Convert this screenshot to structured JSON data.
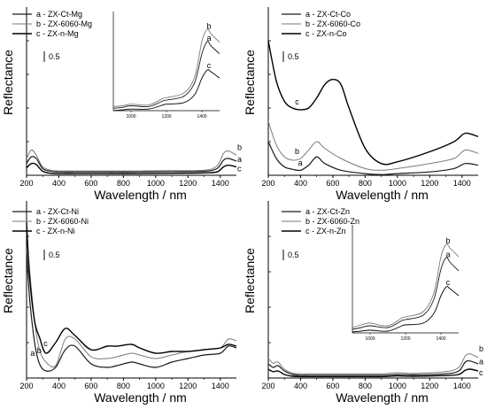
{
  "figure": {
    "panels": [
      {
        "id": "mg",
        "legend": [
          "a - ZX-Ct-Mg",
          "b - ZX-6060-Mg",
          "c - ZX-n-Mg"
        ],
        "scale_label": "0.5"
      },
      {
        "id": "co",
        "legend": [
          "a - ZX-Ct-Co",
          "b - ZX-6060-Co",
          "c - ZX-n-Co"
        ],
        "scale_label": "0.5"
      },
      {
        "id": "ni",
        "legend": [
          "a - ZX-Ct-Ni",
          "b - ZX-6060-Ni",
          "c - ZX-n-Ni"
        ],
        "scale_label": "0.5"
      },
      {
        "id": "zn",
        "legend": [
          "a - ZX-Ct-Zn",
          "b - ZX-6060-Zn",
          "c - ZX-n-Zn"
        ],
        "scale_label": "0.5"
      }
    ]
  },
  "chart_data": [
    {
      "type": "line",
      "xlabel": "Wavelength / nm",
      "ylabel": "Reflectance",
      "xlim": [
        200,
        1500
      ],
      "ylim": [
        0,
        5
      ],
      "x_ticks": [
        "200",
        "400",
        "600",
        "800",
        "1000",
        "1200",
        "1400"
      ],
      "legend": [
        "a - ZX-Ct-Mg",
        "b - ZX-6060-Mg",
        "c - ZX-n-Mg"
      ],
      "annotations": [
        "a",
        "b",
        "c",
        "0.5"
      ],
      "series": [
        {
          "name": "a - ZX-Ct-Mg",
          "label": "a",
          "x": [
            200,
            230,
            260,
            300,
            350,
            400,
            500,
            700,
            900,
            1100,
            1300,
            1380,
            1420,
            1450,
            1500
          ],
          "y": [
            0.35,
            0.55,
            0.5,
            0.2,
            0.12,
            0.1,
            0.1,
            0.1,
            0.1,
            0.11,
            0.12,
            0.2,
            0.45,
            0.5,
            0.42
          ]
        },
        {
          "name": "b - ZX-6060-Mg",
          "label": "b",
          "x": [
            200,
            230,
            260,
            300,
            350,
            400,
            500,
            700,
            900,
            1100,
            1300,
            1380,
            1420,
            1450,
            1500
          ],
          "y": [
            0.5,
            0.75,
            0.6,
            0.25,
            0.15,
            0.13,
            0.13,
            0.13,
            0.13,
            0.14,
            0.15,
            0.28,
            0.65,
            0.72,
            0.6
          ]
        },
        {
          "name": "c - ZX-n-Mg",
          "label": "c",
          "x": [
            200,
            230,
            260,
            300,
            350,
            400,
            500,
            700,
            900,
            1100,
            1300,
            1380,
            1420,
            1450,
            1500
          ],
          "y": [
            0.22,
            0.35,
            0.32,
            0.12,
            0.06,
            0.05,
            0.05,
            0.05,
            0.05,
            0.06,
            0.07,
            0.1,
            0.25,
            0.3,
            0.25
          ]
        }
      ],
      "inset": {
        "x_ticks": [
          "1000",
          "1200",
          "1400"
        ],
        "xlim": [
          900,
          1500
        ],
        "ylim": [
          0,
          1
        ],
        "series": [
          {
            "label": "a",
            "x": [
              900,
              950,
              1000,
              1100,
              1180,
              1200,
              1300,
              1360,
              1400,
              1430,
              1450,
              1500
            ],
            "y": [
              0.03,
              0.04,
              0.06,
              0.05,
              0.12,
              0.13,
              0.18,
              0.35,
              0.7,
              0.85,
              0.8,
              0.7
            ]
          },
          {
            "label": "b",
            "x": [
              900,
              950,
              1000,
              1100,
              1180,
              1200,
              1300,
              1360,
              1400,
              1430,
              1450,
              1500
            ],
            "y": [
              0.05,
              0.06,
              0.08,
              0.07,
              0.15,
              0.16,
              0.22,
              0.42,
              0.85,
              1.0,
              0.95,
              0.84
            ]
          },
          {
            "label": "c",
            "x": [
              900,
              950,
              1000,
              1100,
              1180,
              1200,
              1300,
              1360,
              1400,
              1430,
              1450,
              1500
            ],
            "y": [
              0.0,
              0.01,
              0.02,
              0.02,
              0.07,
              0.08,
              0.1,
              0.2,
              0.4,
              0.5,
              0.48,
              0.4
            ]
          }
        ]
      }
    },
    {
      "type": "line",
      "xlabel": "Wavelength / nm",
      "ylabel": "Reflectance",
      "xlim": [
        200,
        1500
      ],
      "ylim": [
        0,
        5
      ],
      "x_ticks": [
        "200",
        "400",
        "600",
        "800",
        "1000",
        "1200",
        "1400"
      ],
      "legend": [
        "a - ZX-Ct-Co",
        "b - ZX-6060-Co",
        "c - ZX-n-Co"
      ],
      "annotations": [
        "a",
        "b",
        "c",
        "0.5"
      ],
      "series": [
        {
          "name": "a - ZX-Ct-Co",
          "label": "a",
          "x": [
            200,
            250,
            300,
            350,
            400,
            450,
            500,
            550,
            650,
            800,
            900,
            1000,
            1200,
            1350,
            1420,
            1500
          ],
          "y": [
            1.0,
            0.5,
            0.25,
            0.18,
            0.15,
            0.3,
            0.55,
            0.35,
            0.15,
            0.05,
            0.02,
            0.05,
            0.1,
            0.2,
            0.35,
            0.3
          ]
        },
        {
          "name": "b - ZX-6060-Co",
          "label": "b",
          "x": [
            200,
            250,
            300,
            350,
            400,
            450,
            500,
            550,
            650,
            800,
            900,
            1000,
            1200,
            1350,
            1420,
            1500
          ],
          "y": [
            1.6,
            0.9,
            0.55,
            0.45,
            0.5,
            0.75,
            1.0,
            0.8,
            0.5,
            0.2,
            0.15,
            0.2,
            0.35,
            0.5,
            0.75,
            0.65
          ]
        },
        {
          "name": "c - ZX-n-Co",
          "label": "c",
          "x": [
            200,
            250,
            300,
            350,
            400,
            450,
            500,
            550,
            600,
            650,
            700,
            800,
            900,
            1000,
            1200,
            1350,
            1420,
            1500
          ],
          "y": [
            4.0,
            2.8,
            2.2,
            2.0,
            1.95,
            2.0,
            2.3,
            2.7,
            2.85,
            2.7,
            2.0,
            0.8,
            0.35,
            0.4,
            0.7,
            1.0,
            1.25,
            1.15
          ]
        }
      ]
    },
    {
      "type": "line",
      "xlabel": "Wavelength / nm",
      "ylabel": "Reflectance",
      "xlim": [
        200,
        1500
      ],
      "ylim": [
        0,
        5
      ],
      "x_ticks": [
        "200",
        "400",
        "600",
        "800",
        "1000",
        "1200",
        "1400"
      ],
      "legend": [
        "a - ZX-Ct-Ni",
        "b - ZX-6060-Ni",
        "c - ZX-n-Ni"
      ],
      "annotations": [
        "a",
        "b",
        "c",
        "0.5"
      ],
      "series": [
        {
          "name": "a - ZX-Ct-Ni",
          "label": "a",
          "x": [
            200,
            220,
            250,
            280,
            320,
            380,
            440,
            500,
            600,
            700,
            760,
            850,
            900,
            1000,
            1100,
            1200,
            1300,
            1400,
            1450,
            1500
          ],
          "y": [
            3.6,
            2.2,
            1.0,
            0.4,
            0.2,
            0.3,
            0.8,
            0.9,
            0.4,
            0.3,
            0.35,
            0.45,
            0.4,
            0.3,
            0.45,
            0.55,
            0.65,
            0.7,
            0.9,
            0.85
          ]
        },
        {
          "name": "b - ZX-6060-Ni",
          "label": "b",
          "x": [
            200,
            220,
            250,
            280,
            320,
            380,
            440,
            500,
            600,
            700,
            760,
            850,
            900,
            1000,
            1100,
            1200,
            1300,
            1400,
            1450,
            1500
          ],
          "y": [
            4.2,
            3.0,
            1.6,
            0.8,
            0.45,
            0.35,
            1.1,
            1.1,
            0.6,
            0.55,
            0.6,
            0.7,
            0.65,
            0.55,
            0.65,
            0.75,
            0.8,
            0.85,
            1.1,
            1.05
          ]
        },
        {
          "name": "c - ZX-n-Ni",
          "label": "c",
          "x": [
            200,
            220,
            250,
            280,
            320,
            380,
            440,
            500,
            600,
            700,
            760,
            850,
            900,
            1000,
            1100,
            1200,
            1300,
            1400,
            1450,
            1500
          ],
          "y": [
            4.4,
            2.8,
            1.6,
            1.15,
            0.7,
            1.0,
            1.4,
            1.2,
            0.8,
            0.9,
            0.9,
            0.95,
            0.85,
            0.7,
            0.75,
            0.75,
            0.8,
            0.85,
            0.95,
            0.9
          ]
        }
      ]
    },
    {
      "type": "line",
      "xlabel": "Wavelength / nm",
      "ylabel": "Reflectance",
      "xlim": [
        200,
        1500
      ],
      "ylim": [
        0,
        5
      ],
      "x_ticks": [
        "200",
        "400",
        "600",
        "800",
        "1000",
        "1200",
        "1400"
      ],
      "legend": [
        "a - ZX-Ct-Zn",
        "b - ZX-6060-Zn",
        "c - ZX-n-Zn"
      ],
      "annotations": [
        "a",
        "b",
        "c",
        "0.5"
      ],
      "series": [
        {
          "name": "a - ZX-Ct-Zn",
          "label": "a",
          "x": [
            200,
            230,
            260,
            300,
            350,
            400,
            500,
            700,
            900,
            1000,
            1100,
            1300,
            1380,
            1420,
            1450,
            1500
          ],
          "y": [
            0.4,
            0.3,
            0.35,
            0.2,
            0.1,
            0.08,
            0.08,
            0.08,
            0.08,
            0.1,
            0.09,
            0.12,
            0.2,
            0.45,
            0.48,
            0.4
          ]
        },
        {
          "name": "b - ZX-6060-Zn",
          "label": "b",
          "x": [
            200,
            230,
            260,
            300,
            350,
            400,
            500,
            700,
            900,
            1000,
            1100,
            1300,
            1380,
            1420,
            1450,
            1500
          ],
          "y": [
            0.55,
            0.42,
            0.45,
            0.25,
            0.14,
            0.12,
            0.12,
            0.12,
            0.12,
            0.15,
            0.13,
            0.18,
            0.3,
            0.62,
            0.68,
            0.58
          ]
        },
        {
          "name": "c - ZX-n-Zn",
          "label": "c",
          "x": [
            200,
            230,
            260,
            300,
            350,
            400,
            500,
            700,
            900,
            1000,
            1100,
            1300,
            1380,
            1420,
            1450,
            1500
          ],
          "y": [
            0.25,
            0.18,
            0.2,
            0.1,
            0.05,
            0.04,
            0.04,
            0.04,
            0.04,
            0.06,
            0.05,
            0.07,
            0.1,
            0.22,
            0.25,
            0.2
          ]
        }
      ],
      "inset": {
        "x_ticks": [
          "1000",
          "1200",
          "1400"
        ],
        "xlim": [
          900,
          1500
        ],
        "ylim": [
          0,
          1
        ],
        "series": [
          {
            "label": "a",
            "x": [
              900,
              950,
              1000,
              1100,
              1180,
              1200,
              1300,
              1360,
              1400,
              1430,
              1450,
              1500
            ],
            "y": [
              0.04,
              0.06,
              0.08,
              0.06,
              0.14,
              0.15,
              0.2,
              0.38,
              0.72,
              0.85,
              0.8,
              0.7
            ]
          },
          {
            "label": "b",
            "x": [
              900,
              950,
              1000,
              1100,
              1180,
              1200,
              1300,
              1360,
              1400,
              1430,
              1450,
              1500
            ],
            "y": [
              0.06,
              0.09,
              0.11,
              0.08,
              0.17,
              0.18,
              0.24,
              0.45,
              0.86,
              1.0,
              0.96,
              0.86
            ]
          },
          {
            "label": "c",
            "x": [
              900,
              950,
              1000,
              1100,
              1180,
              1200,
              1300,
              1360,
              1400,
              1430,
              1450,
              1500
            ],
            "y": [
              0.01,
              0.02,
              0.03,
              0.02,
              0.08,
              0.09,
              0.11,
              0.22,
              0.42,
              0.52,
              0.5,
              0.42
            ]
          }
        ]
      }
    }
  ]
}
